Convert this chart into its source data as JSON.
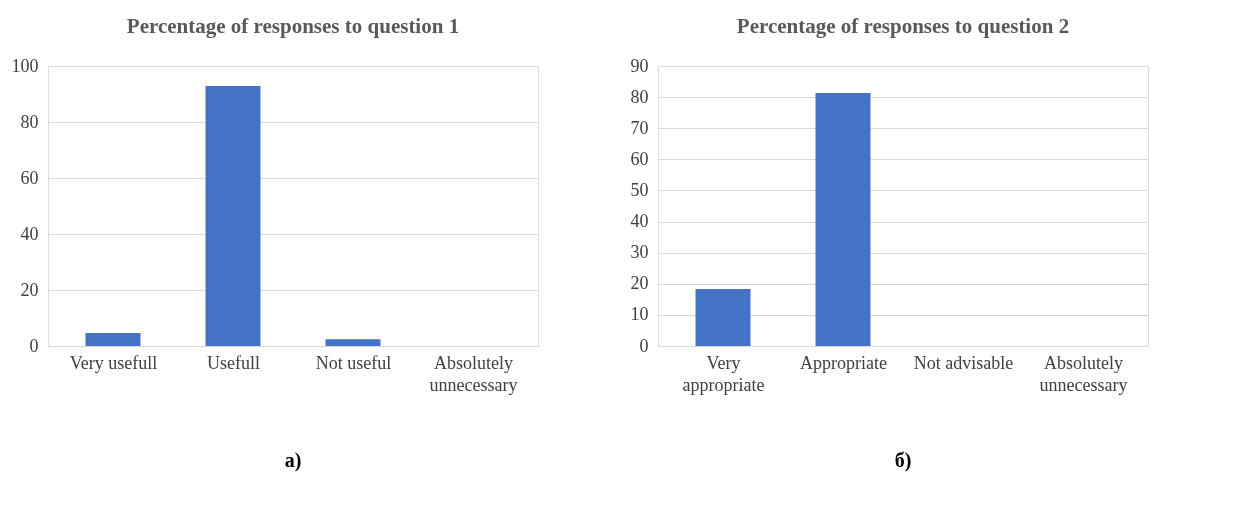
{
  "chart_data": [
    {
      "type": "bar",
      "title": "Percentage of responses to question 1",
      "categories": [
        "Very usefull",
        "Usefull",
        "Not useful",
        "Absolutely unnecessary"
      ],
      "values": [
        4.6,
        92.9,
        2.4,
        0
      ],
      "color": "#4472c4",
      "ylim": [
        0,
        100
      ],
      "yticks": [
        0,
        20,
        40,
        60,
        80,
        100
      ],
      "grid": "y",
      "annotations": [
        "а)"
      ]
    },
    {
      "type": "bar",
      "title": "Percentage of responses to question 2",
      "categories": [
        "Very appropriate",
        "Appropriate",
        "Not advisable",
        "Absolutely unnecessary"
      ],
      "values": [
        18.3,
        81.3,
        0,
        0
      ],
      "color": "#4472c4",
      "ylim": [
        0,
        90
      ],
      "yticks": [
        0,
        10,
        20,
        30,
        40,
        50,
        60,
        70,
        80,
        90
      ],
      "grid": "y",
      "annotations": [
        "б)"
      ]
    }
  ]
}
